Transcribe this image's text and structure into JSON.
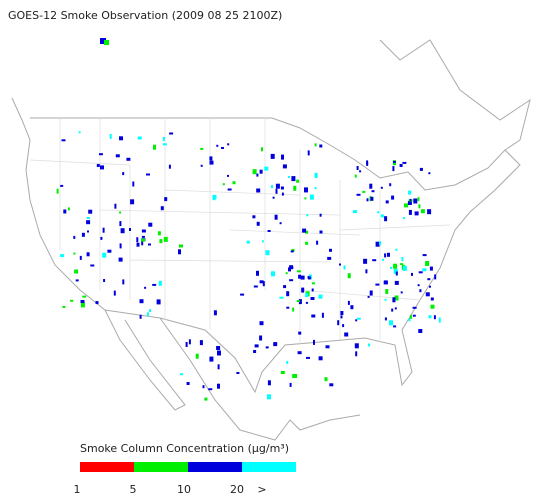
{
  "title": "GOES-12 Smoke Observation (2009 08 25  2100Z)",
  "legend": {
    "title": "Smoke Column Concentration (μg/m³)",
    "colors": [
      "#ff0000",
      "#00ee00",
      "#0000dd",
      "#00ffff"
    ],
    "labels": [
      "1",
      "5",
      "10",
      "20",
      ">"
    ]
  }
}
